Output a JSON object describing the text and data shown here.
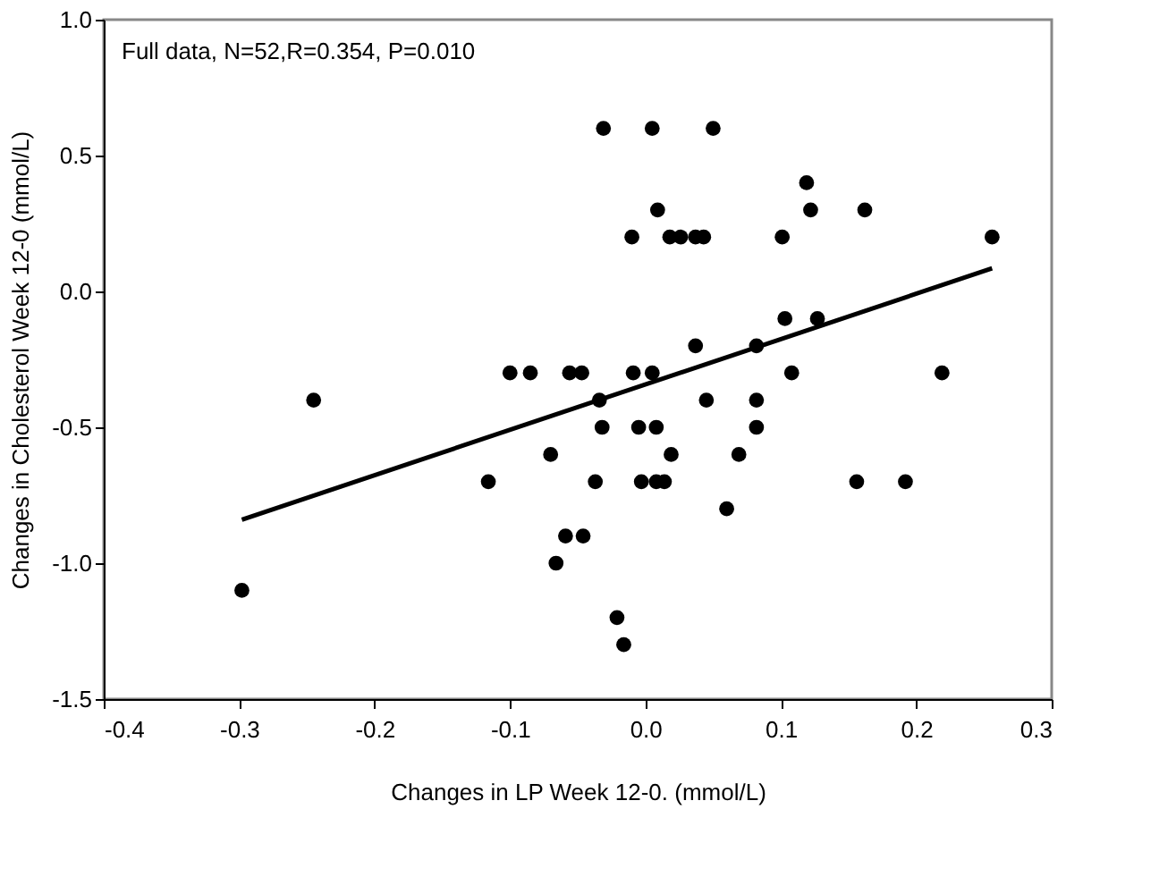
{
  "chart_data": {
    "type": "scatter",
    "xlabel": "Changes in LP Week 12-0. (mmol/L)",
    "ylabel": "Changes in Cholesterol Week 12-0 (mmol/L)",
    "annotations": [
      "Full data, N=52,R=0.354, P=0.010"
    ],
    "xlim": [
      -0.4,
      0.3
    ],
    "xticks": [
      {
        "value": -0.4,
        "label": "-0.4"
      },
      {
        "value": -0.3,
        "label": "-0.3"
      },
      {
        "value": -0.2,
        "label": "-0.2"
      },
      {
        "value": -0.1,
        "label": "-0.1"
      },
      {
        "value": 0,
        "label": "0.0"
      },
      {
        "value": 0.1,
        "label": "0.1"
      },
      {
        "value": 0.2,
        "label": "0.2"
      },
      {
        "value": 0.3,
        "label": "0.3"
      }
    ],
    "ylim": [
      -1.5,
      1.0
    ],
    "yticks": [
      {
        "value": -1.5,
        "label": "-1.5"
      },
      {
        "value": -1,
        "label": "-1.0"
      },
      {
        "value": -0.5,
        "label": "-0.5"
      },
      {
        "value": 0,
        "label": "0.0"
      },
      {
        "value": 0.5,
        "label": "0.5"
      },
      {
        "value": 1,
        "label": "1.0"
      }
    ],
    "grid": false,
    "marker": "circle",
    "series": [
      {
        "color": "#000000",
        "x": [
          -0.031,
          0.005,
          0.05,
          0.119,
          0.009,
          0.122,
          0.162,
          -0.01,
          0.018,
          0.026,
          0.037,
          0.043,
          0.101,
          0.256,
          0.103,
          0.127,
          0.037,
          0.082,
          -0.1,
          -0.085,
          -0.056,
          -0.047,
          -0.009,
          0.005,
          0.108,
          0.219,
          -0.034,
          0.045,
          0.082,
          -0.032,
          -0.005,
          0.008,
          0.082,
          -0.07,
          0.019,
          0.069,
          -0.116,
          -0.037,
          -0.003,
          0.008,
          0.014,
          0.156,
          0.192,
          0.06,
          -0.059,
          -0.046,
          -0.066,
          -0.021,
          -0.016,
          -0.245,
          -0.298
        ],
        "values": [
          0.6,
          0.6,
          0.6,
          0.4,
          0.3,
          0.3,
          0.3,
          0.2,
          0.2,
          0.2,
          0.2,
          0.2,
          0.2,
          0.2,
          -0.1,
          -0.1,
          -0.2,
          -0.2,
          -0.3,
          -0.3,
          -0.3,
          -0.3,
          -0.3,
          -0.3,
          -0.3,
          -0.3,
          -0.4,
          -0.4,
          -0.4,
          -0.5,
          -0.5,
          -0.5,
          -0.5,
          -0.6,
          -0.6,
          -0.6,
          -0.7,
          -0.7,
          -0.7,
          -0.7,
          -0.7,
          -0.7,
          -0.7,
          -0.8,
          -0.9,
          -0.9,
          -1.0,
          -1.2,
          -1.3,
          -0.4,
          -1.1
        ]
      },
      {
        "type": "line",
        "color": "#000000",
        "line_style": "solid",
        "marker": "none",
        "x": [
          -0.298,
          0.256
        ],
        "values": [
          -0.84,
          0.085
        ]
      }
    ]
  }
}
